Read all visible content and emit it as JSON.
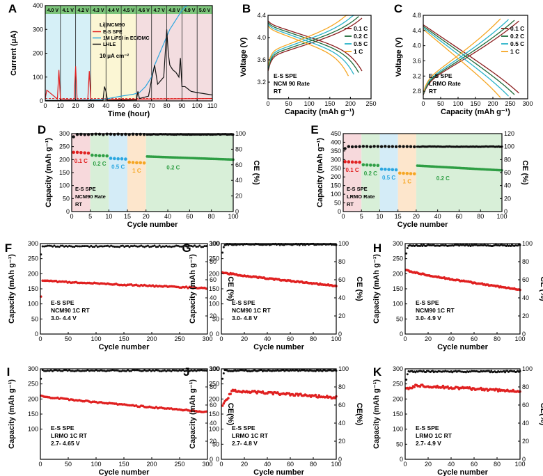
{
  "colors": {
    "axis": "#000000",
    "red": "#e02020",
    "black": "#111111",
    "blue": "#2aa6e0",
    "green": "#2e9e44",
    "orange": "#f5a623",
    "dark_red": "#8b1e1e",
    "dark_green": "#1f6b3a",
    "teal": "#29b3c9"
  },
  "chart_data": [
    {
      "id": "A",
      "type": "line",
      "xlabel": "Time (hour)",
      "ylabel": "Current (μA)",
      "xlim": [
        0,
        110
      ],
      "ylim": [
        0,
        400
      ],
      "xticks": [
        0,
        10,
        20,
        30,
        40,
        50,
        60,
        70,
        80,
        90,
        100,
        110
      ],
      "yticks": [
        0,
        100,
        200,
        300,
        400
      ],
      "voltage_steps": [
        "4.0 V",
        "4.1 V",
        "4.2 V",
        "4.3 V",
        "4.4 V",
        "4.5 V",
        "4.6 V",
        "4.7 V",
        "4.8 V",
        "4.9 V",
        "5.0 V"
      ],
      "legend_title": "Li||NCM90",
      "annotation": "10 μA cm⁻²",
      "series": [
        {
          "name": "E-S SPE",
          "color": "#e02020",
          "x": [
            0,
            1,
            8,
            9,
            10,
            11,
            19,
            20,
            21,
            28,
            29,
            30,
            31,
            110
          ],
          "y": [
            10,
            45,
            8,
            130,
            5,
            8,
            5,
            145,
            5,
            5,
            125,
            6,
            6,
            10
          ]
        },
        {
          "name": "1M LiFSI in EC/DMC",
          "color": "#2aa6e0",
          "x": [
            0,
            10,
            20,
            30,
            40,
            50,
            58,
            62,
            66,
            70,
            72,
            74,
            76,
            78,
            80,
            82,
            84,
            86,
            88,
            90,
            92,
            94
          ],
          "y": [
            0,
            2,
            3,
            4,
            8,
            20,
            28,
            35,
            60,
            100,
            150,
            180,
            210,
            240,
            270,
            300,
            320,
            340,
            360,
            380,
            395,
            400
          ]
        },
        {
          "name": "LHLE",
          "color": "#111111",
          "x": [
            0,
            38,
            39,
            40,
            41,
            60,
            61,
            62,
            68,
            70,
            72,
            73,
            74,
            78,
            80,
            81,
            82,
            84,
            86,
            88,
            89,
            90,
            92,
            94,
            96,
            100,
            105,
            110
          ],
          "y": [
            2,
            2,
            60,
            40,
            2,
            4,
            40,
            10,
            20,
            90,
            150,
            110,
            70,
            100,
            300,
            200,
            150,
            130,
            120,
            100,
            180,
            60,
            60,
            50,
            40,
            35,
            30,
            25
          ]
        }
      ]
    },
    {
      "id": "B",
      "type": "line",
      "xlabel": "Capacity (mAh g⁻¹)",
      "ylabel": "Voltage (V)",
      "xlim": [
        0,
        250
      ],
      "ylim": [
        2.9,
        4.4
      ],
      "xticks": [
        0,
        50,
        100,
        150,
        200,
        250
      ],
      "yticks": [
        3.2,
        3.6,
        4.0,
        4.4
      ],
      "annotation": [
        "E-S SPE",
        "NCM 90 Rate",
        "RT"
      ],
      "series": [
        {
          "name": "0.1 C",
          "color": "#8b1e1e",
          "charge_end": 228,
          "discharge_end": 228
        },
        {
          "name": "0.2 C",
          "color": "#1f6b3a",
          "charge_end": 220,
          "discharge_end": 220
        },
        {
          "name": "0.5 C",
          "color": "#29b3c9",
          "charge_end": 208,
          "discharge_end": 208
        },
        {
          "name": "1 C",
          "color": "#f5a623",
          "charge_end": 195,
          "discharge_end": 195
        }
      ]
    },
    {
      "id": "C",
      "type": "line",
      "xlabel": "Capacity (mAh g⁻¹)",
      "ylabel": "Voltage (V)",
      "xlim": [
        0,
        300
      ],
      "ylim": [
        2.6,
        4.8
      ],
      "xticks": [
        0,
        50,
        100,
        150,
        200,
        250,
        300
      ],
      "yticks": [
        2.8,
        3.2,
        3.6,
        4.0,
        4.4,
        4.8
      ],
      "annotation": [
        "E-S SPE",
        "LRMO Rate",
        "RT"
      ],
      "series": [
        {
          "name": "0.1 C",
          "color": "#8b1e1e",
          "charge_end": 275,
          "discharge_end": 275
        },
        {
          "name": "0.2 C",
          "color": "#1f6b3a",
          "charge_end": 262,
          "discharge_end": 262
        },
        {
          "name": "0.5 C",
          "color": "#29b3c9",
          "charge_end": 245,
          "discharge_end": 245
        },
        {
          "name": "1 C",
          "color": "#f5a623",
          "charge_end": 222,
          "discharge_end": 222
        }
      ]
    },
    {
      "id": "D",
      "type": "scatter",
      "xlabel": "Cycle number",
      "ylabel": "Capacity (mAh g⁻¹)",
      "y2label": "CE (%)",
      "xlim": [
        0,
        100
      ],
      "ylim": [
        0,
        300
      ],
      "y2lim": [
        0,
        100
      ],
      "xticks": [
        0,
        5,
        10,
        15,
        20,
        40,
        60,
        80,
        100
      ],
      "yticks": [
        0,
        50,
        100,
        150,
        200,
        250,
        300
      ],
      "y2ticks": [
        0,
        20,
        40,
        60,
        80,
        100
      ],
      "annotation": [
        "E-S SPE",
        "NCM90 Rate",
        "RT"
      ],
      "rate_labels": [
        "0.1 C",
        "0.2 C",
        "0.5 C",
        "1 C",
        "0.2 C"
      ],
      "capacity_groups": [
        [
          228,
          228,
          227,
          226,
          225
        ],
        [
          217,
          216,
          215,
          215,
          214
        ],
        [
          205,
          204,
          203,
          203,
          202
        ],
        [
          190,
          189,
          188,
          188,
          187
        ],
        [
          212,
          200
        ]
      ],
      "ce": 99
    },
    {
      "id": "E",
      "type": "scatter",
      "xlabel": "Cycle number",
      "ylabel": "Capacity (mAh g⁻¹)",
      "y2label": "CE (%)",
      "xlim": [
        0,
        100
      ],
      "ylim": [
        0,
        450
      ],
      "y2lim": [
        0,
        120
      ],
      "xticks": [
        0,
        5,
        10,
        15,
        20,
        40,
        60,
        80,
        100
      ],
      "yticks": [
        0,
        50,
        100,
        150,
        200,
        250,
        300,
        350,
        400,
        450
      ],
      "y2ticks": [
        0,
        20,
        40,
        60,
        80,
        100,
        120
      ],
      "annotation": [
        "E-S SPE",
        "LRMO Rate",
        "RT"
      ],
      "rate_labels": [
        "0.1 C",
        "0.2 C",
        "0.5 C",
        "1 C",
        "0.2 C"
      ],
      "capacity_groups": [
        [
          288,
          287,
          286,
          285,
          285
        ],
        [
          270,
          269,
          268,
          267,
          266
        ],
        [
          245,
          244,
          243,
          242,
          241
        ],
        [
          222,
          221,
          220,
          219,
          218
        ],
        [
          265,
          238
        ]
      ],
      "ce": 100
    },
    {
      "id": "F",
      "type": "scatter",
      "xlabel": "Cycle number",
      "ylabel": "Capacity (mAh g⁻¹)",
      "y2label": "CE (%)",
      "xlim": [
        0,
        300
      ],
      "ylim": [
        0,
        300
      ],
      "y2lim": [
        0,
        100
      ],
      "xticks": [
        0,
        50,
        100,
        150,
        200,
        250,
        300
      ],
      "yticks": [
        0,
        50,
        100,
        150,
        200,
        250,
        300
      ],
      "y2ticks": [
        0,
        20,
        40,
        60,
        80,
        100
      ],
      "annotation": [
        "E-S SPE",
        "NCM90  1C RT",
        "3.0- 4.4 V"
      ],
      "capacity_start": 178,
      "capacity_end": 152,
      "ce": 97
    },
    {
      "id": "G",
      "type": "scatter",
      "xlabel": "Cycle number",
      "ylabel": "Capacity (mAh g⁻¹)",
      "y2label": "CE (%)",
      "xlim": [
        0,
        100
      ],
      "ylim": [
        0,
        300
      ],
      "y2lim": [
        0,
        100
      ],
      "xticks": [
        0,
        20,
        40,
        60,
        80,
        100
      ],
      "yticks": [
        0,
        50,
        100,
        150,
        200,
        250,
        300
      ],
      "y2ticks": [
        0,
        20,
        40,
        60,
        80,
        100
      ],
      "annotation": [
        "E-S SPE",
        "NCM90  1C RT",
        "3.0- 4.8 V"
      ],
      "capacity_start": 205,
      "capacity_end": 160,
      "ce": 99
    },
    {
      "id": "H",
      "type": "scatter",
      "xlabel": "Cycle number",
      "ylabel": "Capacity (mAh g⁻¹)",
      "y2label": "CE (%)",
      "xlim": [
        0,
        100
      ],
      "ylim": [
        0,
        300
      ],
      "y2lim": [
        0,
        100
      ],
      "xticks": [
        0,
        20,
        40,
        60,
        80,
        100
      ],
      "yticks": [
        0,
        50,
        100,
        150,
        200,
        250,
        300
      ],
      "y2ticks": [
        0,
        20,
        40,
        60,
        80,
        100
      ],
      "annotation": [
        "E-S SPE",
        "NCM90  1C RT",
        "3.0- 4.9 V"
      ],
      "capacity_start": 212,
      "capacity_end": 147,
      "ce": 98
    },
    {
      "id": "I",
      "type": "scatter",
      "xlabel": "Cycle number",
      "ylabel": "Capacity (mAh g⁻¹)",
      "y2label": "CE(%)",
      "xlim": [
        0,
        300
      ],
      "ylim": [
        0,
        300
      ],
      "y2lim": [
        0,
        100
      ],
      "xticks": [
        0,
        50,
        100,
        150,
        200,
        250,
        300
      ],
      "yticks": [
        100,
        150,
        200,
        250,
        300
      ],
      "y2ticks": [
        0,
        20,
        40,
        60,
        80,
        100
      ],
      "annotation": [
        "E-S SPE",
        "LRMO  1C RT",
        "2.7- 4.65 V"
      ],
      "capacity_start": 210,
      "capacity_end": 157,
      "ce": 98
    },
    {
      "id": "J",
      "type": "scatter",
      "xlabel": "Cycle number",
      "ylabel": "Capacity (mAh g⁻¹)",
      "y2label": "CE(%)",
      "xlim": [
        0,
        100
      ],
      "ylim": [
        0,
        300
      ],
      "y2lim": [
        0,
        100
      ],
      "xticks": [
        0,
        20,
        40,
        60,
        80,
        100
      ],
      "yticks": [
        0,
        50,
        100,
        150,
        200,
        250,
        300
      ],
      "y2ticks": [
        0,
        20,
        40,
        60,
        80,
        100
      ],
      "annotation": [
        "E-S SPE",
        "LRMO 1C RT",
        "2.7- 4.8 V"
      ],
      "capacity_start": 175,
      "capacity_peak": 228,
      "capacity_end": 205,
      "ce": 98
    },
    {
      "id": "K",
      "type": "scatter",
      "xlabel": "Cycle number",
      "ylabel": "Capacity (mAh g⁻¹)",
      "y2label": "CE(%)",
      "xlim": [
        0,
        100
      ],
      "ylim": [
        0,
        300
      ],
      "y2lim": [
        0,
        100
      ],
      "xticks": [
        0,
        20,
        40,
        60,
        80,
        100
      ],
      "yticks": [
        0,
        50,
        100,
        150,
        200,
        250,
        300
      ],
      "y2ticks": [
        0,
        20,
        40,
        60,
        80,
        100
      ],
      "annotation": [
        "E-S SPE",
        "LRMO 1C RT",
        "2.7- 4.9 V"
      ],
      "capacity_start": 230,
      "capacity_peak": 245,
      "capacity_end": 225,
      "ce": 97
    }
  ]
}
